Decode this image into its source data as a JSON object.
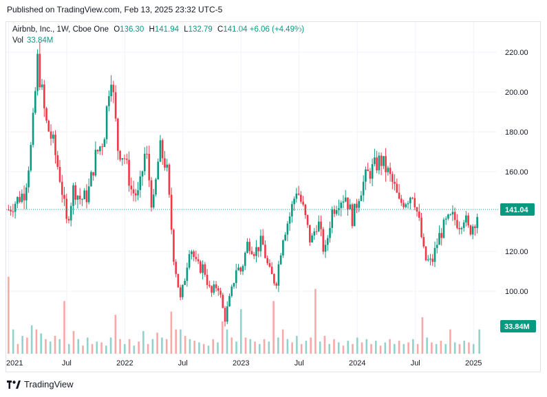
{
  "header": {
    "published": "Published on TradingView.com, Feb 13, 2025 23:32 UTC-5"
  },
  "legend": {
    "symbol": "Airbnb, Inc., 1W, Cboe One",
    "o_label": "O",
    "o": "136.30",
    "h_label": "H",
    "h": "141.94",
    "l_label": "L",
    "l": "132.79",
    "c_label": "C",
    "c": "141.04",
    "change": "+6.06 (+4.49%)",
    "vol_label": "Vol",
    "vol_value": "33.84M"
  },
  "footer": {
    "brand": "TradingView"
  },
  "colors": {
    "up": "#089981",
    "down": "#f23645",
    "vol_up": "#92d2cc",
    "vol_down": "#f7a9a7",
    "grid": "#f0f3fa"
  },
  "chart_data": {
    "type": "candlestick",
    "y_ticks": [
      "220.00",
      "200.00",
      "180.00",
      "160.00",
      "140.00",
      "120.00",
      "100.00"
    ],
    "x_ticks": [
      "2021",
      "Jul",
      "2022",
      "Jul",
      "2023",
      "Jul",
      "2024",
      "Jul",
      "2025"
    ],
    "ylim": [
      81,
      224
    ],
    "last_price": "141.04",
    "last_volume": "33.84M",
    "series": [
      {
        "x": 0.0,
        "c": 141
      },
      {
        "x": 0.14,
        "c": 150
      },
      {
        "x": 0.2,
        "c": 175
      },
      {
        "x": 0.25,
        "c": 216
      },
      {
        "x": 0.32,
        "c": 185
      },
      {
        "x": 0.38,
        "c": 175
      },
      {
        "x": 0.45,
        "c": 155
      },
      {
        "x": 0.5,
        "c": 134
      },
      {
        "x": 0.56,
        "c": 152
      },
      {
        "x": 0.62,
        "c": 146
      },
      {
        "x": 0.68,
        "c": 148
      },
      {
        "x": 0.75,
        "c": 168
      },
      {
        "x": 0.82,
        "c": 177
      },
      {
        "x": 0.88,
        "c": 212
      },
      {
        "x": 0.94,
        "c": 172
      },
      {
        "x": 1.0,
        "c": 167
      },
      {
        "x": 1.06,
        "c": 150
      },
      {
        "x": 1.12,
        "c": 148
      },
      {
        "x": 1.18,
        "c": 172
      },
      {
        "x": 1.24,
        "c": 140
      },
      {
        "x": 1.3,
        "c": 172
      },
      {
        "x": 1.36,
        "c": 162
      },
      {
        "x": 1.42,
        "c": 118
      },
      {
        "x": 1.48,
        "c": 95
      },
      {
        "x": 1.52,
        "c": 108
      },
      {
        "x": 1.56,
        "c": 124
      },
      {
        "x": 1.62,
        "c": 112
      },
      {
        "x": 1.68,
        "c": 112
      },
      {
        "x": 1.74,
        "c": 98
      },
      {
        "x": 1.8,
        "c": 104
      },
      {
        "x": 1.86,
        "c": 86
      },
      {
        "x": 1.92,
        "c": 100
      },
      {
        "x": 1.96,
        "c": 112
      },
      {
        "x": 2.0,
        "c": 110
      },
      {
        "x": 2.06,
        "c": 125
      },
      {
        "x": 2.12,
        "c": 120
      },
      {
        "x": 2.18,
        "c": 125
      },
      {
        "x": 2.24,
        "c": 110
      },
      {
        "x": 2.3,
        "c": 104
      },
      {
        "x": 2.36,
        "c": 128
      },
      {
        "x": 2.42,
        "c": 138
      },
      {
        "x": 2.48,
        "c": 152
      },
      {
        "x": 2.54,
        "c": 140
      },
      {
        "x": 2.6,
        "c": 124
      },
      {
        "x": 2.66,
        "c": 136
      },
      {
        "x": 2.72,
        "c": 118
      },
      {
        "x": 2.78,
        "c": 140
      },
      {
        "x": 2.84,
        "c": 146
      },
      {
        "x": 2.9,
        "c": 148
      },
      {
        "x": 2.96,
        "c": 136
      },
      {
        "x": 3.02,
        "c": 150
      },
      {
        "x": 3.08,
        "c": 158
      },
      {
        "x": 3.14,
        "c": 162
      },
      {
        "x": 3.2,
        "c": 166
      },
      {
        "x": 3.26,
        "c": 160
      },
      {
        "x": 3.32,
        "c": 152
      },
      {
        "x": 3.36,
        "c": 144
      },
      {
        "x": 3.42,
        "c": 146
      },
      {
        "x": 3.48,
        "c": 150
      },
      {
        "x": 3.54,
        "c": 132
      },
      {
        "x": 3.58,
        "c": 116
      },
      {
        "x": 3.64,
        "c": 114
      },
      {
        "x": 3.7,
        "c": 127
      },
      {
        "x": 3.76,
        "c": 134
      },
      {
        "x": 3.82,
        "c": 137
      },
      {
        "x": 3.88,
        "c": 134
      },
      {
        "x": 3.92,
        "c": 138
      },
      {
        "x": 3.96,
        "c": 130
      },
      {
        "x": 4.0,
        "c": 134
      },
      {
        "x": 4.05,
        "c": 141
      }
    ],
    "volume": [
      {
        "x": 0.0,
        "v": 0.95,
        "up": false
      },
      {
        "x": 0.04,
        "v": 0.3,
        "up": true
      },
      {
        "x": 0.08,
        "v": 0.12,
        "up": false
      },
      {
        "x": 0.12,
        "v": 0.22,
        "up": true
      },
      {
        "x": 0.16,
        "v": 0.2,
        "up": false
      },
      {
        "x": 0.2,
        "v": 0.35,
        "up": true
      },
      {
        "x": 0.24,
        "v": 0.3,
        "up": false
      },
      {
        "x": 0.28,
        "v": 0.25,
        "up": true
      },
      {
        "x": 0.32,
        "v": 0.18,
        "up": false
      },
      {
        "x": 0.36,
        "v": 0.15,
        "up": true
      },
      {
        "x": 0.4,
        "v": 0.22,
        "up": false
      },
      {
        "x": 0.44,
        "v": 0.18,
        "up": true
      },
      {
        "x": 0.48,
        "v": 0.65,
        "up": false
      },
      {
        "x": 0.52,
        "v": 0.12,
        "up": true
      },
      {
        "x": 0.56,
        "v": 0.28,
        "up": false
      },
      {
        "x": 0.6,
        "v": 0.18,
        "up": true
      },
      {
        "x": 0.64,
        "v": 0.1,
        "up": false
      },
      {
        "x": 0.68,
        "v": 0.2,
        "up": true
      },
      {
        "x": 0.72,
        "v": 0.12,
        "up": false
      },
      {
        "x": 0.76,
        "v": 0.15,
        "up": true
      },
      {
        "x": 0.8,
        "v": 0.14,
        "up": false
      },
      {
        "x": 0.84,
        "v": 0.1,
        "up": true
      },
      {
        "x": 0.88,
        "v": 0.2,
        "up": true
      },
      {
        "x": 0.92,
        "v": 0.48,
        "up": false
      },
      {
        "x": 0.96,
        "v": 0.18,
        "up": false
      },
      {
        "x": 1.0,
        "v": 0.12,
        "up": true
      },
      {
        "x": 1.04,
        "v": 0.18,
        "up": false
      },
      {
        "x": 1.08,
        "v": 0.1,
        "up": true
      },
      {
        "x": 1.12,
        "v": 0.15,
        "up": false
      },
      {
        "x": 1.16,
        "v": 0.28,
        "up": true
      },
      {
        "x": 1.2,
        "v": 0.12,
        "up": false
      },
      {
        "x": 1.24,
        "v": 0.18,
        "up": true
      },
      {
        "x": 1.28,
        "v": 0.26,
        "up": false
      },
      {
        "x": 1.32,
        "v": 0.2,
        "up": true
      },
      {
        "x": 1.36,
        "v": 0.18,
        "up": false
      },
      {
        "x": 1.4,
        "v": 0.52,
        "up": false
      },
      {
        "x": 1.44,
        "v": 0.3,
        "up": false
      },
      {
        "x": 1.48,
        "v": 0.3,
        "up": true
      },
      {
        "x": 1.52,
        "v": 0.22,
        "up": false
      },
      {
        "x": 1.56,
        "v": 0.18,
        "up": true
      },
      {
        "x": 1.6,
        "v": 0.16,
        "up": false
      },
      {
        "x": 1.64,
        "v": 0.14,
        "up": true
      },
      {
        "x": 1.68,
        "v": 0.12,
        "up": false
      },
      {
        "x": 1.72,
        "v": 0.1,
        "up": true
      },
      {
        "x": 1.76,
        "v": 0.18,
        "up": false
      },
      {
        "x": 1.8,
        "v": 0.14,
        "up": true
      },
      {
        "x": 1.84,
        "v": 0.4,
        "up": false
      },
      {
        "x": 1.88,
        "v": 0.3,
        "up": true
      },
      {
        "x": 1.92,
        "v": 0.2,
        "up": false
      },
      {
        "x": 1.96,
        "v": 0.15,
        "up": true
      },
      {
        "x": 2.0,
        "v": 0.55,
        "up": true
      },
      {
        "x": 2.04,
        "v": 0.2,
        "up": false
      },
      {
        "x": 2.08,
        "v": 0.18,
        "up": true
      },
      {
        "x": 2.12,
        "v": 0.15,
        "up": false
      },
      {
        "x": 2.16,
        "v": 0.12,
        "up": true
      },
      {
        "x": 2.2,
        "v": 0.18,
        "up": false
      },
      {
        "x": 2.24,
        "v": 0.15,
        "up": true
      },
      {
        "x": 2.28,
        "v": 0.65,
        "up": false
      },
      {
        "x": 2.32,
        "v": 0.2,
        "up": true
      },
      {
        "x": 2.36,
        "v": 0.3,
        "up": false
      },
      {
        "x": 2.4,
        "v": 0.18,
        "up": true
      },
      {
        "x": 2.44,
        "v": 0.14,
        "up": false
      },
      {
        "x": 2.48,
        "v": 0.22,
        "up": true
      },
      {
        "x": 2.52,
        "v": 0.12,
        "up": false
      },
      {
        "x": 2.56,
        "v": 0.16,
        "up": true
      },
      {
        "x": 2.6,
        "v": 0.2,
        "up": false
      },
      {
        "x": 2.64,
        "v": 0.8,
        "up": false
      },
      {
        "x": 2.68,
        "v": 0.15,
        "up": true
      },
      {
        "x": 2.72,
        "v": 0.22,
        "up": false
      },
      {
        "x": 2.76,
        "v": 0.12,
        "up": true
      },
      {
        "x": 2.8,
        "v": 0.18,
        "up": false
      },
      {
        "x": 2.84,
        "v": 0.14,
        "up": true
      },
      {
        "x": 2.88,
        "v": 0.1,
        "up": false
      },
      {
        "x": 2.92,
        "v": 0.16,
        "up": true
      },
      {
        "x": 2.96,
        "v": 0.12,
        "up": false
      },
      {
        "x": 3.0,
        "v": 0.2,
        "up": true
      },
      {
        "x": 3.04,
        "v": 0.14,
        "up": false
      },
      {
        "x": 3.08,
        "v": 0.18,
        "up": true
      },
      {
        "x": 3.12,
        "v": 0.12,
        "up": false
      },
      {
        "x": 3.16,
        "v": 0.16,
        "up": true
      },
      {
        "x": 3.2,
        "v": 0.1,
        "up": false
      },
      {
        "x": 3.24,
        "v": 0.14,
        "up": true
      },
      {
        "x": 3.28,
        "v": 0.18,
        "up": false
      },
      {
        "x": 3.32,
        "v": 0.12,
        "up": true
      },
      {
        "x": 3.36,
        "v": 0.16,
        "up": false
      },
      {
        "x": 3.4,
        "v": 0.12,
        "up": true
      },
      {
        "x": 3.44,
        "v": 0.14,
        "up": false
      },
      {
        "x": 3.48,
        "v": 0.18,
        "up": true
      },
      {
        "x": 3.52,
        "v": 0.12,
        "up": false
      },
      {
        "x": 3.56,
        "v": 0.45,
        "up": false
      },
      {
        "x": 3.6,
        "v": 0.2,
        "up": true
      },
      {
        "x": 3.64,
        "v": 0.14,
        "up": false
      },
      {
        "x": 3.68,
        "v": 0.12,
        "up": true
      },
      {
        "x": 3.72,
        "v": 0.16,
        "up": false
      },
      {
        "x": 3.76,
        "v": 0.12,
        "up": true
      },
      {
        "x": 3.8,
        "v": 0.3,
        "up": false
      },
      {
        "x": 3.84,
        "v": 0.14,
        "up": true
      },
      {
        "x": 3.88,
        "v": 0.12,
        "up": false
      },
      {
        "x": 3.92,
        "v": 0.16,
        "up": true
      },
      {
        "x": 3.96,
        "v": 0.14,
        "up": false
      },
      {
        "x": 4.0,
        "v": 0.12,
        "up": true
      },
      {
        "x": 4.05,
        "v": 0.3,
        "up": true
      }
    ]
  }
}
